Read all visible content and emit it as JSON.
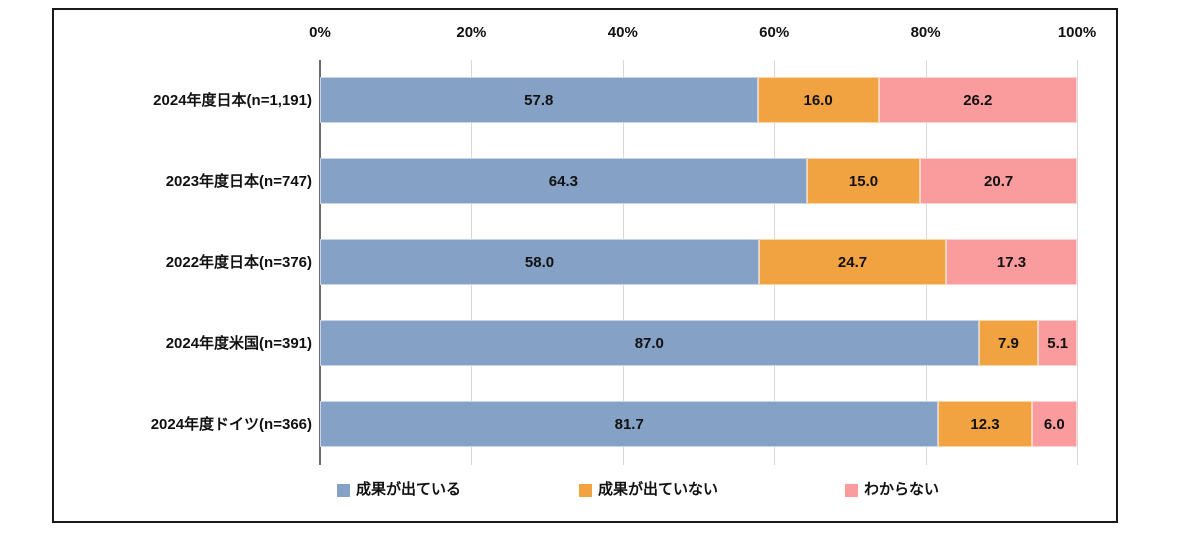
{
  "chart_data": {
    "type": "bar",
    "orientation": "horizontal",
    "stacked": true,
    "title": "",
    "xlabel": "",
    "ylabel": "",
    "x_axis": {
      "position": "top",
      "min": 0,
      "max": 100,
      "tick_labels": [
        "0%",
        "20%",
        "40%",
        "60%",
        "80%",
        "100%"
      ],
      "tick_values": [
        0,
        20,
        40,
        60,
        80,
        100
      ]
    },
    "grid": true,
    "categories": [
      "2024年度日本(n=1,191)",
      "2023年度日本(n=747)",
      "2022年度日本(n=376)",
      "2024年度米国(n=391)",
      "2024年度ドイツ(n=366)"
    ],
    "series": [
      {
        "name": "成果が出ている",
        "color": "#85A1C5",
        "values": [
          57.8,
          64.3,
          58.0,
          87.0,
          81.7
        ]
      },
      {
        "name": "成果が出ていない",
        "color": "#F1A342",
        "values": [
          16.0,
          15.0,
          24.7,
          7.9,
          12.3
        ]
      },
      {
        "name": "わからない",
        "color": "#FA9B9D",
        "values": [
          26.2,
          20.7,
          17.3,
          5.1,
          6.0
        ]
      }
    ],
    "legend_position": "bottom",
    "colors": {
      "gridline": "#d9d9d9",
      "zero_axis": "#6b6b6b",
      "frame_border": "#1a1a1a",
      "label_text": "#111111"
    }
  }
}
